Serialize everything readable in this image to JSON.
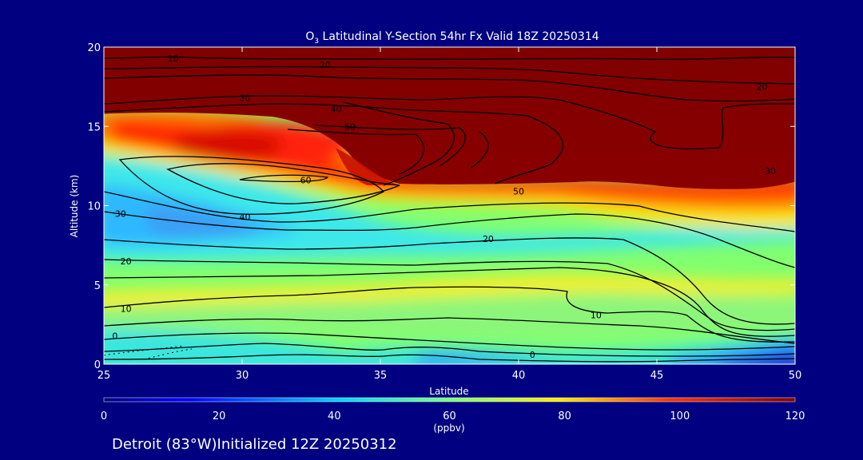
{
  "chart_data": {
    "type": "heatmap",
    "title_prefix": "O",
    "title_subscript": "3",
    "title_rest": " Latitudinal Y-Section 54hr  Fx Valid 18Z 20250314",
    "xlabel": "Latitude",
    "ylabel": "Altitude (km)",
    "xlim": [
      25,
      50
    ],
    "ylim": [
      0,
      20
    ],
    "xticks": [
      25,
      30,
      35,
      40,
      45,
      50
    ],
    "yticks": [
      0,
      5,
      10,
      15,
      20
    ],
    "colorbar": {
      "min": 0,
      "max": 120,
      "ticks": [
        0,
        20,
        40,
        60,
        80,
        100,
        120
      ],
      "unit": "(ppbv)"
    },
    "contour_labels": [
      {
        "text": "10",
        "x": 27.5,
        "y": 19.3
      },
      {
        "text": "20",
        "x": 33.0,
        "y": 18.9
      },
      {
        "text": "20",
        "x": 48.8,
        "y": 17.5
      },
      {
        "text": "30",
        "x": 30.1,
        "y": 16.8
      },
      {
        "text": "40",
        "x": 33.4,
        "y": 16.1
      },
      {
        "text": "50",
        "x": 33.9,
        "y": 15.0
      },
      {
        "text": "60",
        "x": 32.3,
        "y": 11.6
      },
      {
        "text": "50",
        "x": 40.0,
        "y": 10.9
      },
      {
        "text": "40",
        "x": 30.1,
        "y": 9.3
      },
      {
        "text": "30",
        "x": 49.1,
        "y": 12.2
      },
      {
        "text": "30",
        "x": 25.6,
        "y": 9.5
      },
      {
        "text": "20",
        "x": 38.9,
        "y": 7.9
      },
      {
        "text": "20",
        "x": 25.8,
        "y": 6.5
      },
      {
        "text": "10",
        "x": 25.8,
        "y": 3.5
      },
      {
        "text": "10",
        "x": 42.8,
        "y": 3.1
      },
      {
        "text": "0",
        "x": 25.4,
        "y": 1.8
      },
      {
        "text": "0",
        "x": 40.5,
        "y": 0.6
      }
    ]
  },
  "footer": {
    "caption": "Detroit (83°W)Initialized 12Z 20250312"
  }
}
